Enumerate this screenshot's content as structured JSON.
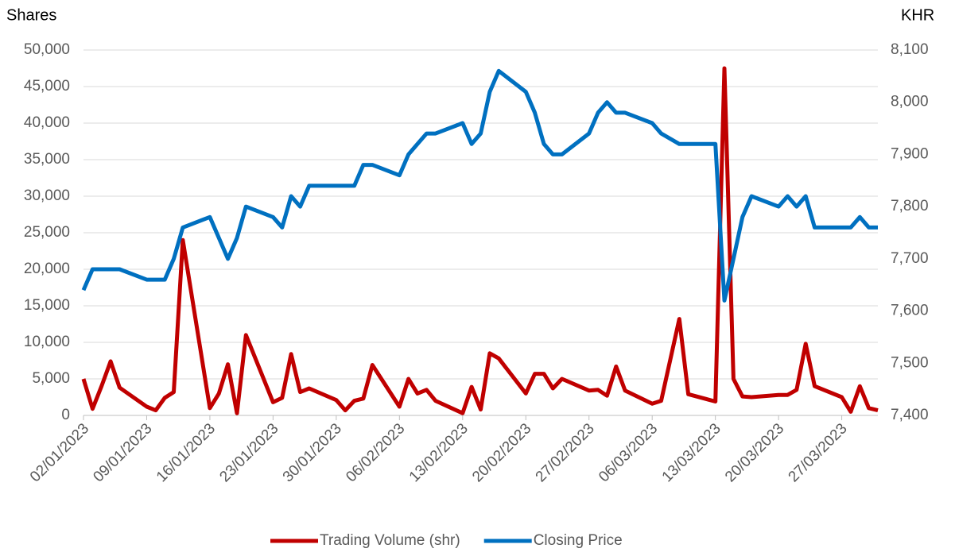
{
  "chart_data": {
    "type": "line",
    "y_label": "Shares",
    "y2_label": "KHR",
    "x": [
      "02/01/2023",
      "03/01/2023",
      "04/01/2023",
      "05/01/2023",
      "06/01/2023",
      "09/01/2023",
      "10/01/2023",
      "11/01/2023",
      "12/01/2023",
      "13/01/2023",
      "16/01/2023",
      "17/01/2023",
      "18/01/2023",
      "19/01/2023",
      "20/01/2023",
      "23/01/2023",
      "24/01/2023",
      "25/01/2023",
      "26/01/2023",
      "27/01/2023",
      "30/01/2023",
      "31/01/2023",
      "01/02/2023",
      "02/02/2023",
      "03/02/2023",
      "06/02/2023",
      "07/02/2023",
      "08/02/2023",
      "09/02/2023",
      "10/02/2023",
      "13/02/2023",
      "14/02/2023",
      "15/02/2023",
      "16/02/2023",
      "17/02/2023",
      "20/02/2023",
      "21/02/2023",
      "22/02/2023",
      "23/02/2023",
      "24/02/2023",
      "27/02/2023",
      "28/02/2023",
      "01/03/2023",
      "02/03/2023",
      "03/03/2023",
      "06/03/2023",
      "07/03/2023",
      "09/03/2023",
      "10/03/2023",
      "13/03/2023",
      "14/03/2023",
      "15/03/2023",
      "16/03/2023",
      "17/03/2023",
      "20/03/2023",
      "21/03/2023",
      "22/03/2023",
      "23/03/2023",
      "24/03/2023",
      "27/03/2023",
      "28/03/2023",
      "29/03/2023",
      "30/03/2023",
      "31/03/2023"
    ],
    "xticks": [
      "02/01/2023",
      "09/01/2023",
      "16/01/2023",
      "23/01/2023",
      "30/01/2023",
      "06/02/2023",
      "13/02/2023",
      "20/02/2023",
      "27/02/2023",
      "06/03/2023",
      "13/03/2023",
      "20/03/2023",
      "27/03/2023"
    ],
    "series": [
      {
        "name": "Trading Volume (shr)",
        "color": "#c00000",
        "axis": "y",
        "values": [
          5000,
          900,
          4000,
          7400,
          3800,
          1200,
          700,
          2400,
          3200,
          24000,
          1000,
          3000,
          7000,
          300,
          11000,
          1800,
          2400,
          8400,
          3200,
          3700,
          2100,
          700,
          2000,
          2300,
          6900,
          1200,
          5000,
          3000,
          3500,
          2000,
          300,
          3900,
          800,
          8500,
          7800,
          3000,
          5700,
          5700,
          3700,
          5000,
          3400,
          3500,
          2700,
          6700,
          3400,
          1600,
          2000,
          13200,
          2900,
          1900,
          47500,
          5000,
          2600,
          2500,
          2800,
          2800,
          3500,
          9800,
          4000,
          2500,
          500,
          4000,
          1000,
          700
        ]
      },
      {
        "name": "Closing Price",
        "color": "#0070c0",
        "axis": "y2",
        "values": [
          7640,
          7680,
          7680,
          7680,
          7680,
          7660,
          7660,
          7660,
          7700,
          7760,
          7780,
          7740,
          7700,
          7740,
          7800,
          7780,
          7760,
          7820,
          7800,
          7840,
          7840,
          7840,
          7840,
          7880,
          7880,
          7860,
          7900,
          7920,
          7940,
          7940,
          7960,
          7920,
          7940,
          8020,
          8060,
          8020,
          7980,
          7920,
          7900,
          7900,
          7940,
          7980,
          8000,
          7980,
          7980,
          7960,
          7940,
          7920,
          7920,
          7920,
          7620,
          7700,
          7780,
          7820,
          7800,
          7820,
          7800,
          7820,
          7760,
          7760,
          7760,
          7780,
          7760,
          7760
        ]
      }
    ],
    "ylim": [
      0,
      50000
    ],
    "yticks": [
      0,
      {
        "value": 5000,
        "label": "5,000"
      },
      {
        "value": 10000,
        "label": "10,000"
      },
      {
        "value": 15000,
        "label": "15,000"
      },
      {
        "value": 20000,
        "label": "20,000"
      },
      {
        "value": 25000,
        "label": "25,000"
      },
      {
        "value": 30000,
        "label": "30,000"
      },
      {
        "value": 35000,
        "label": "35,000"
      },
      {
        "value": 40000,
        "label": "40,000"
      },
      {
        "value": 45000,
        "label": "45,000"
      },
      {
        "value": 50000,
        "label": "50,000"
      }
    ],
    "y2lim": [
      7400,
      8100
    ],
    "y2ticks": [
      {
        "value": 7400,
        "label": "7,400"
      },
      {
        "value": 7500,
        "label": "7,500"
      },
      {
        "value": 7600,
        "label": "7,600"
      },
      {
        "value": 7700,
        "label": "7,700"
      },
      {
        "value": 7800,
        "label": "7,800"
      },
      {
        "value": 7900,
        "label": "7,900"
      },
      {
        "value": 8000,
        "label": "8,000"
      },
      {
        "value": 8100,
        "label": "8,100"
      }
    ],
    "grid": true,
    "legend": "bottom"
  }
}
